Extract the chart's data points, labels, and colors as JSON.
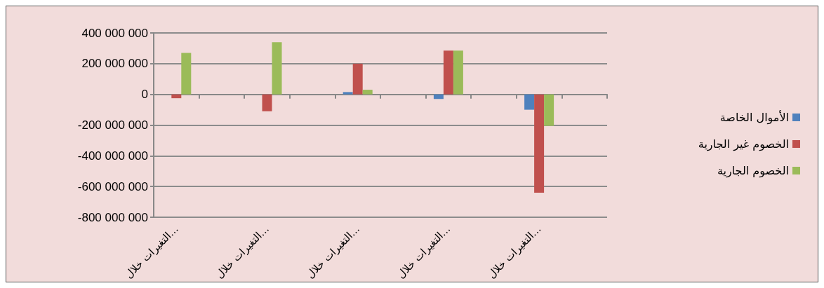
{
  "chart_data": {
    "type": "bar",
    "categories": [
      "التغيرات خلال...",
      null,
      "التغيرات خلال...",
      null,
      "التغيرات خلال...",
      null,
      "التغيرات خلال...",
      null,
      "التغيرات خلال...",
      null
    ],
    "series": [
      {
        "name": "الأموال الخاصة",
        "color": "#4f81bd",
        "values": [
          0,
          0,
          0,
          0,
          15000000,
          0,
          -30000000,
          0,
          -100000000,
          0
        ]
      },
      {
        "name": "الخصوم غير الجارية",
        "color": "#c0504d",
        "values": [
          -25000000,
          0,
          -110000000,
          0,
          200000000,
          0,
          285000000,
          0,
          -640000000,
          0
        ]
      },
      {
        "name": "الخصوم الجارية",
        "color": "#9bbb59",
        "values": [
          270000000,
          0,
          340000000,
          0,
          30000000,
          0,
          285000000,
          0,
          -205000000,
          0
        ]
      }
    ],
    "ylim": [
      -800000000,
      400000000
    ],
    "yticks": [
      {
        "value": -800000000,
        "label": "-800 000 000"
      },
      {
        "value": -600000000,
        "label": "-600 000 000"
      },
      {
        "value": -400000000,
        "label": "-400 000 000"
      },
      {
        "value": -200000000,
        "label": "-200 000 000"
      },
      {
        "value": 0,
        "label": "0"
      },
      {
        "value": 200000000,
        "label": "200 000 000"
      },
      {
        "value": 400000000,
        "label": "400 000 000"
      }
    ],
    "grid": "y",
    "legend": "right"
  }
}
